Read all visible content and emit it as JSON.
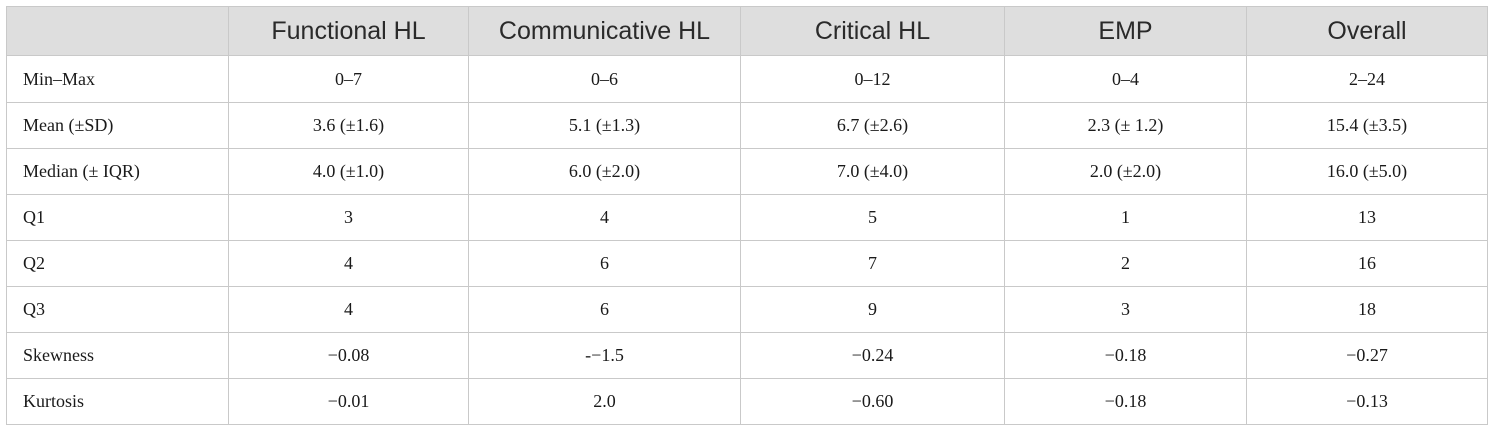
{
  "table": {
    "corner_header": "",
    "columns": [
      "Functional HL",
      "Communicative HL",
      "Critical HL",
      "EMP",
      "Overall"
    ],
    "rows": [
      {
        "label": "Min–Max",
        "values": [
          "0–7",
          "0–6",
          "0–12",
          "0–4",
          "2–24"
        ]
      },
      {
        "label": "Mean (±SD)",
        "values": [
          "3.6 (±1.6)",
          "5.1 (±1.3)",
          "6.7 (±2.6)",
          "2.3 (± 1.2)",
          "15.4 (±3.5)"
        ]
      },
      {
        "label": "Median (± IQR)",
        "values": [
          "4.0 (±1.0)",
          "6.0 (±2.0)",
          "7.0 (±4.0)",
          "2.0 (±2.0)",
          "16.0 (±5.0)"
        ]
      },
      {
        "label": "Q1",
        "values": [
          "3",
          "4",
          "5",
          "1",
          "13"
        ]
      },
      {
        "label": "Q2",
        "values": [
          "4",
          "6",
          "7",
          "2",
          "16"
        ]
      },
      {
        "label": "Q3",
        "values": [
          "4",
          "6",
          "9",
          "3",
          "18"
        ]
      },
      {
        "label": "Skewness",
        "values": [
          "−0.08",
          "-−1.5",
          "−0.24",
          "−0.18",
          "−0.27"
        ]
      },
      {
        "label": "Kurtosis",
        "values": [
          "−0.01",
          "2.0",
          "−0.60",
          "−0.18",
          "−0.13"
        ]
      }
    ]
  },
  "colors": {
    "header_background": "#dedede",
    "border": "#c9c9c9",
    "text": "#1a1a1a"
  }
}
